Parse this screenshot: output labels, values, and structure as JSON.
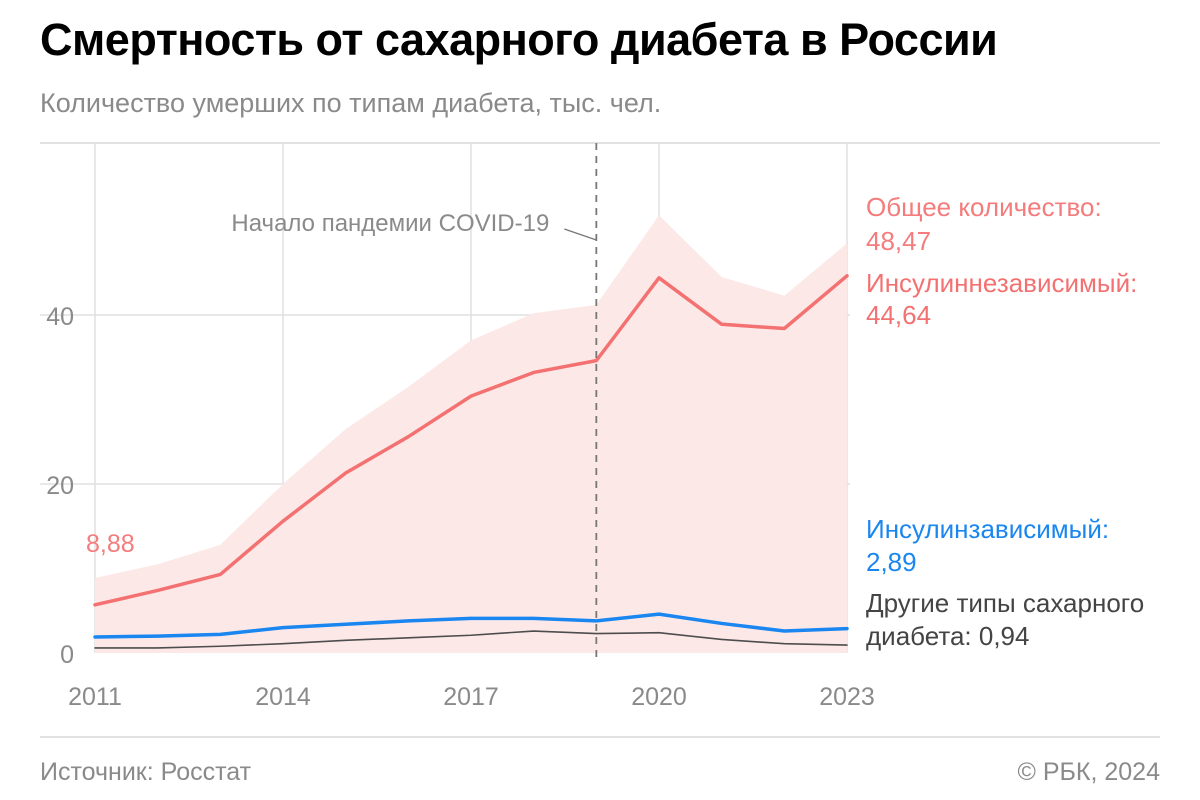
{
  "header": {
    "title": "Смертность от сахарного диабета в России",
    "subtitle": "Количество умерших по типам диабета, тыс. чел."
  },
  "footer": {
    "source": "Источник: Росстат",
    "copyright": "© РБК, 2024"
  },
  "colors": {
    "total": "#f47c7c",
    "total_fill": "#fde8e8",
    "type2": "#f47171",
    "type1": "#1a86f0",
    "other": "#4d4d4d",
    "grid": "#e0e0e0",
    "axis_text": "#8a8a8a"
  },
  "chart_data": {
    "type": "line",
    "x": [
      2011,
      2012,
      2013,
      2014,
      2015,
      2016,
      2017,
      2018,
      2019,
      2020,
      2021,
      2022,
      2023
    ],
    "x_ticks": [
      "2011",
      "2014",
      "2017",
      "2020",
      "2023"
    ],
    "y_ticks": [
      "0",
      "20",
      "40"
    ],
    "ylim": [
      0,
      60
    ],
    "grid": true,
    "annotation": {
      "text": "Начало пандемии COVID-19",
      "x": 2019
    },
    "series": [
      {
        "name": "Общее количество:",
        "style": "area",
        "values": [
          8.88,
          10.5,
          12.8,
          20.0,
          26.5,
          31.5,
          37.0,
          40.2,
          41.2,
          51.8,
          44.5,
          42.3,
          48.47
        ],
        "first_label": "8,88",
        "last_label": "48,47"
      },
      {
        "name": "Инсулиннезависимый:",
        "style": "line",
        "values": [
          5.7,
          7.4,
          9.3,
          15.6,
          21.3,
          25.6,
          30.4,
          33.2,
          34.6,
          44.4,
          38.9,
          38.4,
          44.64
        ],
        "last_label": "44,64"
      },
      {
        "name": "Инсулинзависимый:",
        "style": "line",
        "values": [
          1.9,
          2.0,
          2.2,
          3.0,
          3.4,
          3.8,
          4.1,
          4.1,
          3.8,
          4.6,
          3.5,
          2.6,
          2.89
        ],
        "last_label": "2,89"
      },
      {
        "name": "Другие типы сахарного",
        "name_line2": "диабета: 0,94",
        "style": "thin",
        "values": [
          0.6,
          0.6,
          0.8,
          1.1,
          1.5,
          1.8,
          2.1,
          2.6,
          2.3,
          2.4,
          1.6,
          1.1,
          0.94
        ]
      }
    ]
  }
}
